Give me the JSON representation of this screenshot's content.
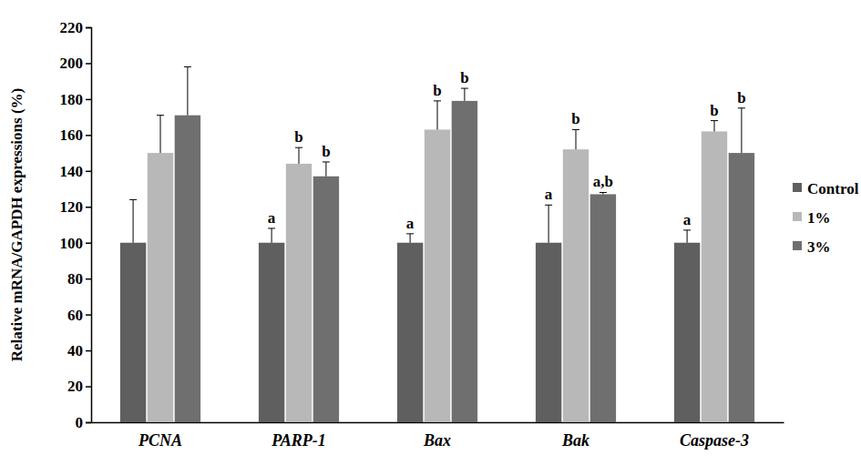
{
  "chart_data": {
    "type": "bar",
    "y_label": "Relative mRNA/GAPDH expressions (%)",
    "categories": [
      "PCNA",
      "PARP-1",
      "Bax",
      "Bak",
      "Caspase-3"
    ],
    "series": [
      {
        "name": "Control",
        "color": "#5f5f5f",
        "values": [
          100,
          100,
          100,
          100,
          100
        ],
        "errors": [
          24,
          8,
          5,
          21,
          7
        ],
        "letters": [
          null,
          "a",
          "a",
          "a",
          "a"
        ]
      },
      {
        "name": "1%",
        "color": "#b8b8b8",
        "values": [
          150,
          144,
          163,
          152,
          162
        ],
        "errors": [
          21,
          9,
          16,
          11,
          6
        ],
        "letters": [
          null,
          "b",
          "b",
          "b",
          "b"
        ]
      },
      {
        "name": "3%",
        "color": "#6f6f6f",
        "values": [
          171,
          137,
          179,
          127,
          150
        ],
        "errors": [
          27,
          8,
          7,
          1,
          25
        ],
        "letters": [
          null,
          "b",
          "b",
          "a,b",
          "b"
        ]
      }
    ],
    "ylim": [
      0,
      220
    ],
    "yticks": [
      0,
      20,
      40,
      60,
      80,
      100,
      120,
      140,
      160,
      180,
      200,
      220
    ],
    "legend": "right"
  }
}
